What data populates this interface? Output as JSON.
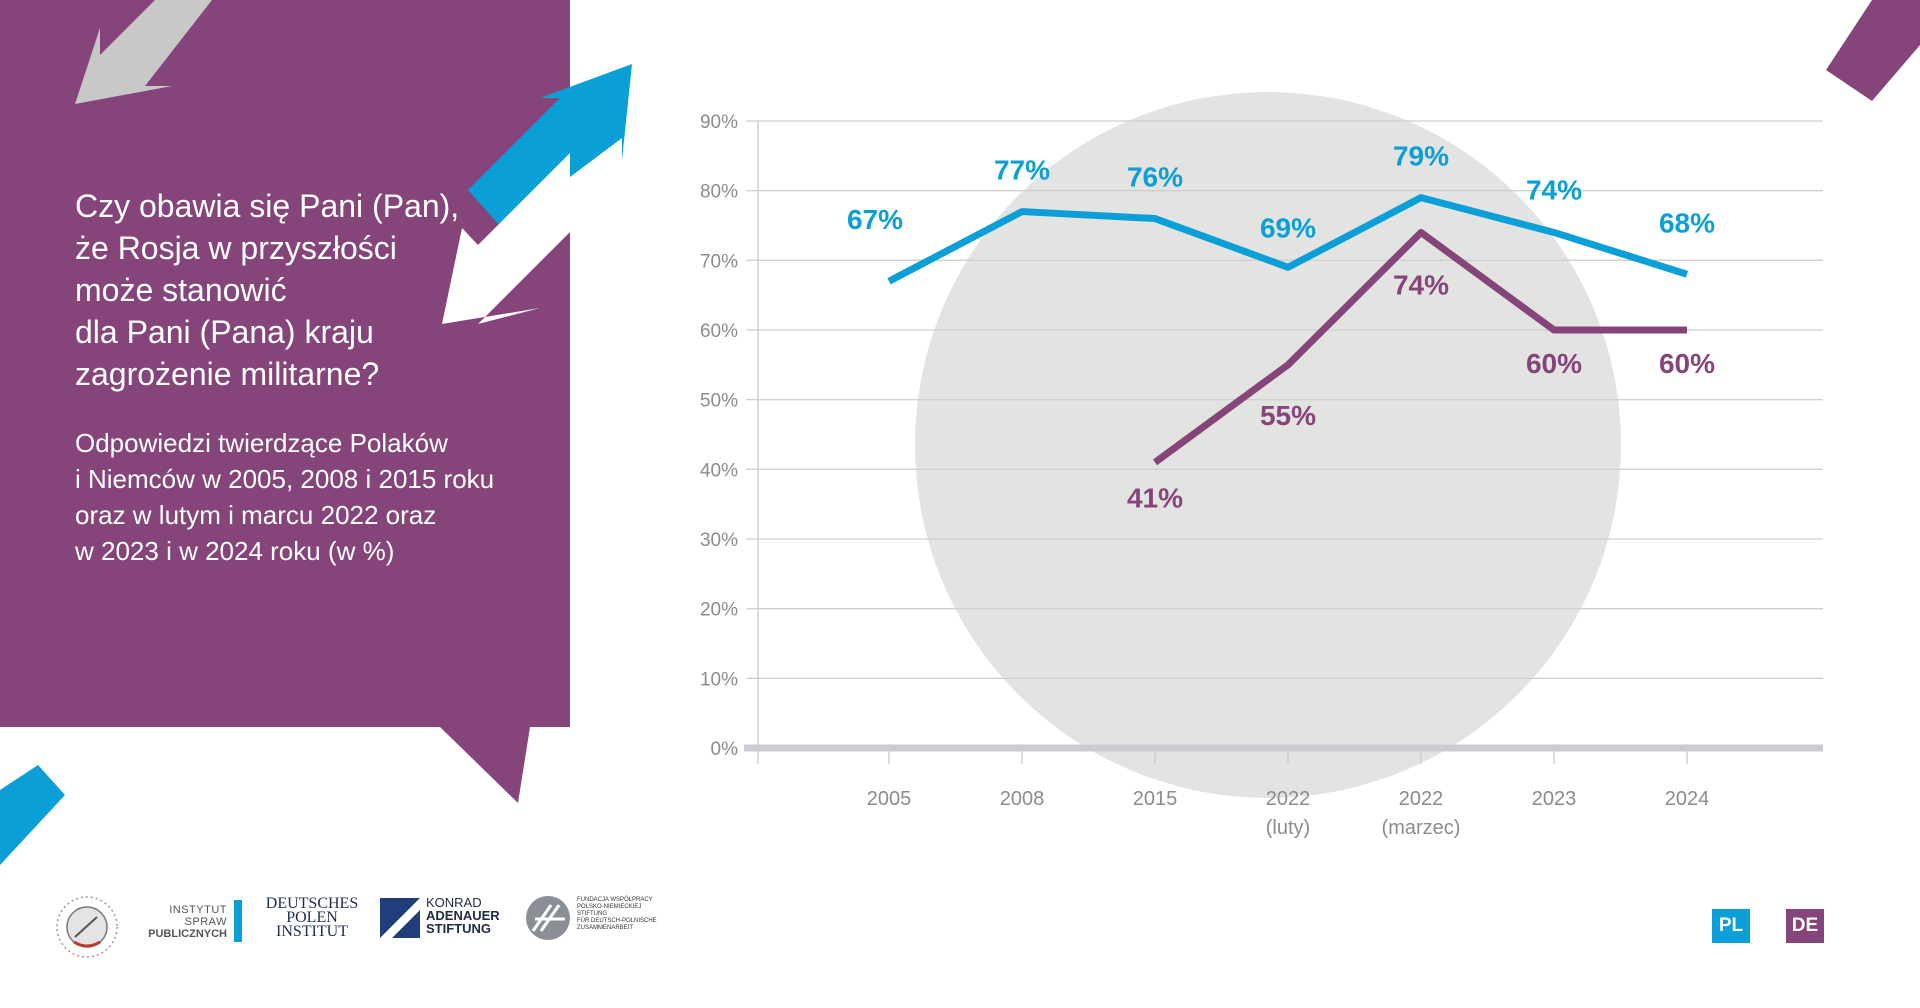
{
  "question": "Czy obawia się Pani (Pan),\nże Rosja w przyszłości\nmoże stanowić\ndla Pani (Pana) kraju\nzagrożenie militarne?",
  "subtitle": "Odpowiedzi twierdzące Polaków\ni Niemców w 2005, 2008 i 2015 roku\noraz w lutym i marcu 2022 oraz\nw 2023 i w 2024 roku (w %)",
  "colors": {
    "panel": "#85457a",
    "blue": "#0a9fd6",
    "purple": "#85457a",
    "circle": "#e3e3e2",
    "arrow_gray": "#c8c8c8",
    "grid": "#cfcfcf"
  },
  "chart_data": {
    "type": "line",
    "categories": [
      [
        "2005"
      ],
      [
        "2008"
      ],
      [
        "2015"
      ],
      [
        "2022",
        "(luty)"
      ],
      [
        "2022",
        "(marzec)"
      ],
      [
        "2023"
      ],
      [
        "2024"
      ]
    ],
    "y_ticks": [
      "0%",
      "10%",
      "20%",
      "30%",
      "40%",
      "50%",
      "60%",
      "70%",
      "80%",
      "90%"
    ],
    "ylim": [
      0,
      90
    ],
    "grid": true,
    "series": [
      {
        "color": "#0a9fd6",
        "values": [
          67,
          77,
          76,
          69,
          79,
          74,
          68
        ],
        "labels": [
          "67%",
          "77%",
          "76%",
          "69%",
          "79%",
          "74%",
          "68%"
        ]
      },
      {
        "color": "#85457a",
        "values": [
          null,
          null,
          41,
          55,
          74,
          60,
          60
        ],
        "labels": [
          null,
          null,
          "41%",
          "55%",
          "74%",
          "60%",
          "60%"
        ]
      }
    ]
  },
  "footer": {
    "logos": [
      {
        "icon": "barometr-seal-logo"
      },
      {
        "icon": "isp-logo",
        "line1": "INSTYTUT SPRAW",
        "line2": "PUBLICZNYCH"
      },
      {
        "icon": "dpi-logo",
        "line1": "DEUTSCHES",
        "line2": "POLEN",
        "line3": "INSTITUT"
      },
      {
        "icon": "kas-logo",
        "line1": "KONRAD",
        "line2": "ADENAUER",
        "line3": "STIFTUNG"
      },
      {
        "icon": "fwpn-logo",
        "line1": "FUNDACJA WSPÓŁPRACY",
        "line2": "POLSKO-NIEMIECKIEJ",
        "line3": "STIFTUNG",
        "line4": "FÜR DEUTSCH-POLNISCHE",
        "line5": "ZUSAMMENARBEIT"
      }
    ],
    "lang_pl": "PL",
    "lang_de": "DE",
    "lang_pl_color": "#0a9fd6",
    "lang_de_color": "#85457a"
  }
}
